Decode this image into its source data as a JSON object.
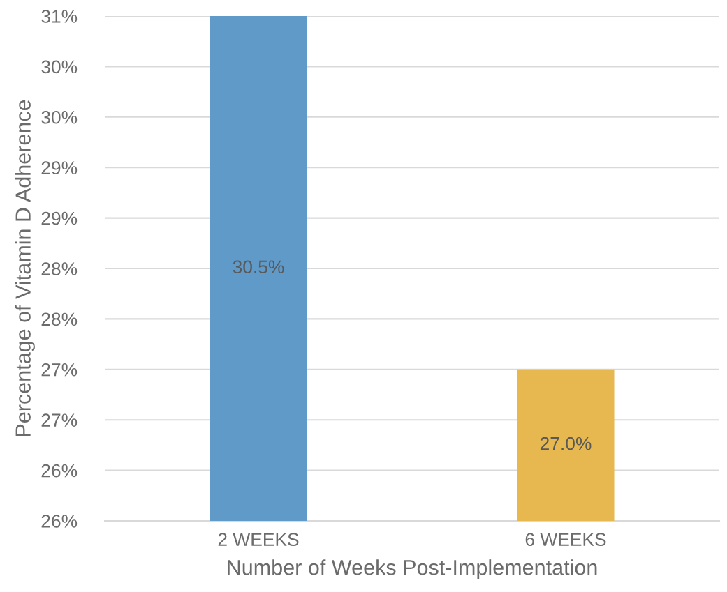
{
  "chart_data": {
    "type": "bar",
    "xlabel": "Number of Weeks Post-Implementation",
    "ylabel": "Percentage of Vitamin D Adherence",
    "categories": [
      "2 WEEKS",
      "6 WEEKS"
    ],
    "values": [
      30.5,
      27.0
    ],
    "colors": [
      "#5f9ac9",
      "#e6b84f"
    ],
    "value_labels": [
      "30.5%",
      "27.0%"
    ],
    "ylim": [
      25.5,
      30.5
    ],
    "yticks": [
      {
        "value": 25.5,
        "label": "26%"
      },
      {
        "value": 26.0,
        "label": "26%"
      },
      {
        "value": 26.5,
        "label": "27%"
      },
      {
        "value": 27.0,
        "label": "27%"
      },
      {
        "value": 27.5,
        "label": "28%"
      },
      {
        "value": 28.0,
        "label": "28%"
      },
      {
        "value": 28.5,
        "label": "29%"
      },
      {
        "value": 29.0,
        "label": "29%"
      },
      {
        "value": 29.5,
        "label": "30%"
      },
      {
        "value": 30.0,
        "label": "30%"
      },
      {
        "value": 30.5,
        "label": "31%"
      }
    ],
    "grid": "y",
    "legend": false
  }
}
